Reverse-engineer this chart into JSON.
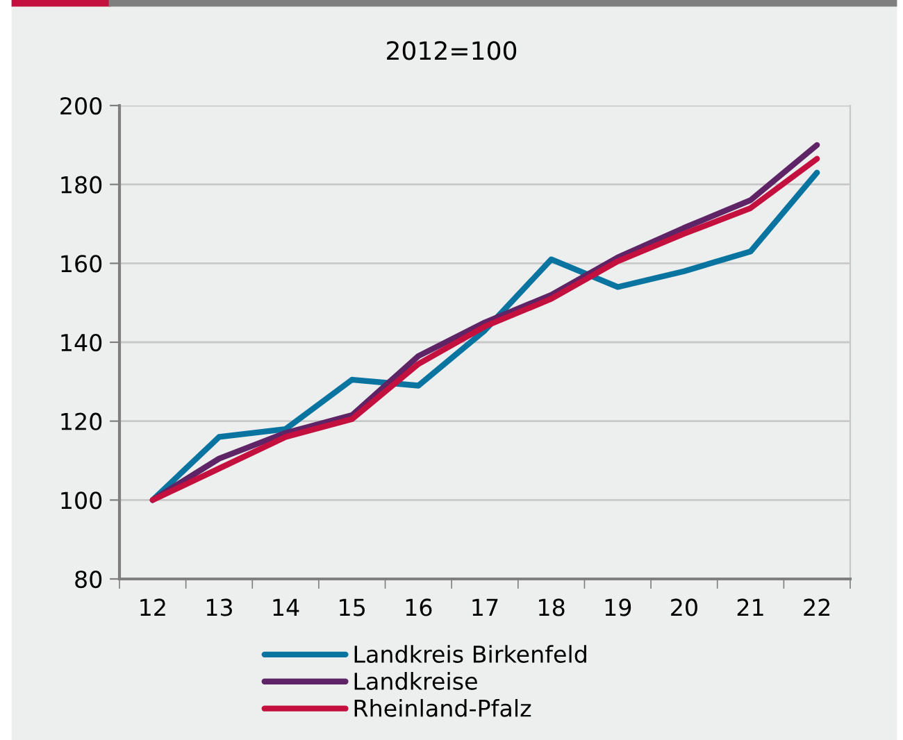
{
  "chart_data": {
    "type": "line",
    "title": "2012=100",
    "categories": [
      "12",
      "13",
      "14",
      "15",
      "16",
      "17",
      "18",
      "19",
      "20",
      "21",
      "22"
    ],
    "series": [
      {
        "name": "Landkreis Birkenfeld",
        "color": "#0a74a0",
        "values": [
          100,
          116,
          118,
          130.5,
          129,
          143,
          161,
          154,
          158,
          163,
          183
        ]
      },
      {
        "name": "Landkreise",
        "color": "#5e2466",
        "values": [
          100,
          110.5,
          117,
          121.5,
          136.5,
          145,
          152,
          161.5,
          169,
          176,
          190
        ]
      },
      {
        "name": "Rheinland-Pfalz",
        "color": "#c4103f",
        "values": [
          100,
          108,
          116,
          120.5,
          134.5,
          144,
          151,
          160.5,
          167.5,
          174,
          186.5
        ]
      }
    ],
    "ylim": [
      80,
      200
    ],
    "yticks": [
      80,
      100,
      120,
      140,
      160,
      180,
      200
    ],
    "grid": "y",
    "legend": "bottom",
    "marker": "none",
    "line_style": "solid"
  }
}
